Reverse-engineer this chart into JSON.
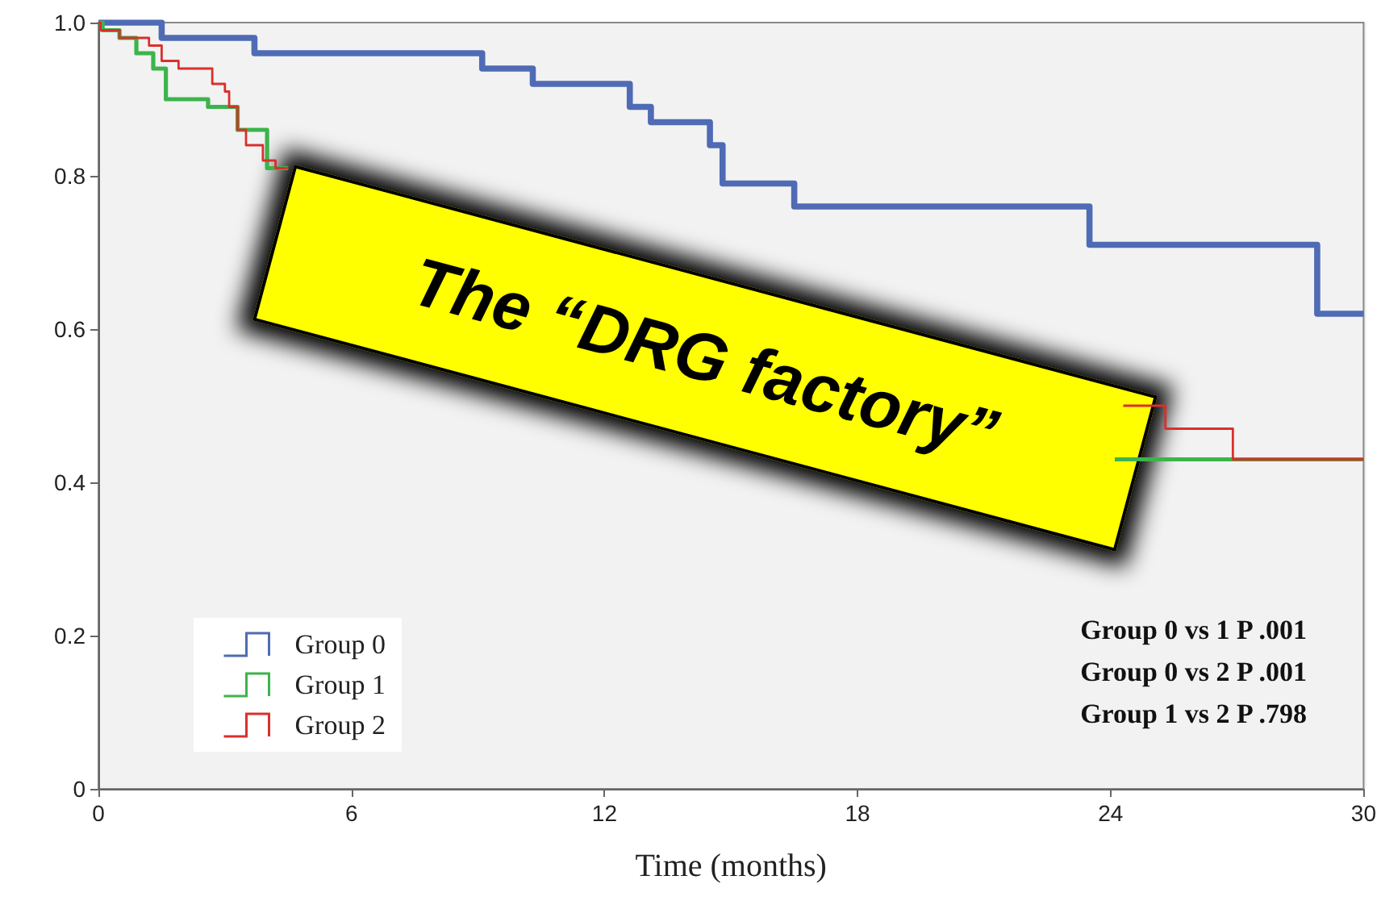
{
  "chart_data": {
    "type": "step",
    "xlabel": "Time (months)",
    "xlim": [
      0,
      30
    ],
    "xticks": [
      0,
      6,
      12,
      18,
      24,
      30
    ],
    "ylim": [
      0,
      1
    ],
    "yticks": [
      0,
      0.2,
      0.4,
      0.6,
      0.8,
      {
        "value": 1,
        "label": "1.0"
      }
    ],
    "grid": false,
    "legend": "bottom left",
    "series": [
      {
        "name": "Group 0",
        "color": "#4f6bb5",
        "x": [
          0,
          1.5,
          3.7,
          9.1,
          10.3,
          12.6,
          13.1,
          14.5,
          14.8,
          16.5,
          23.5,
          28.9,
          30
        ],
        "values": [
          1,
          0.98,
          0.96,
          0.94,
          0.92,
          0.89,
          0.87,
          0.84,
          0.79,
          0.76,
          0.71,
          0.62,
          0.62
        ]
      },
      {
        "name": "Group 1",
        "color": "#3cb44b",
        "x": [
          0,
          0.1,
          0.5,
          0.9,
          1.3,
          1.6,
          2.6,
          3.3,
          4.0,
          4.2,
          4.5,
          24.1,
          30
        ],
        "values": [
          1,
          0.99,
          0.98,
          0.96,
          0.94,
          0.9,
          0.89,
          0.86,
          0.81,
          0.81,
          null,
          0.43,
          0.43
        ]
      },
      {
        "name": "Group 2",
        "color": "#d9302c",
        "x": [
          0,
          0.05,
          0.5,
          1.2,
          1.5,
          1.9,
          2.7,
          3.0,
          3.1,
          3.3,
          3.5,
          3.9,
          4.2,
          4.5,
          24.3,
          25.3,
          26.9,
          30
        ],
        "values": [
          1,
          0.99,
          0.98,
          0.97,
          0.95,
          0.94,
          0.92,
          0.91,
          0.89,
          0.86,
          0.84,
          0.82,
          0.81,
          null,
          0.5,
          0.47,
          0.43,
          0.43
        ]
      }
    ],
    "annotations": [
      "The “DRG factory”",
      "Group 0 vs 1 P .001",
      "Group 0 vs 2 P .001",
      "Group 1 vs 2 P .798"
    ]
  }
}
